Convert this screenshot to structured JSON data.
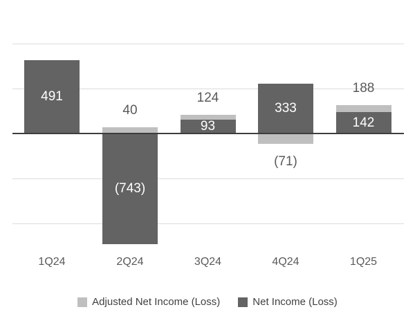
{
  "chart_data": {
    "type": "bar",
    "title": "",
    "categories": [
      "1Q24",
      "2Q24",
      "3Q24",
      "4Q24",
      "1Q25"
    ],
    "series": [
      {
        "name": "Adjusted Net Income (Loss)",
        "color": "#bfbfbf",
        "values": [
          null,
          40,
          124,
          -71,
          188
        ],
        "labels": [
          "",
          "40",
          "124",
          "(71)",
          "188"
        ]
      },
      {
        "name": "Net Income (Loss)",
        "color": "#636363",
        "values": [
          491,
          -743,
          93,
          333,
          142
        ],
        "labels": [
          "491",
          "(743)",
          "93",
          "333",
          "142"
        ]
      }
    ],
    "xlabel": "",
    "ylabel": "",
    "ylim": [
      -900,
      700
    ],
    "gridlines": [
      600,
      300,
      -300,
      -600
    ],
    "grid": true,
    "legend_position": "bottom",
    "value_label_colors": {
      "inside_net_bar": "#ffffff",
      "outside": "#595959"
    },
    "axis_line_color": "#3d3d3d",
    "gridline_color": "#dcdcdc"
  }
}
